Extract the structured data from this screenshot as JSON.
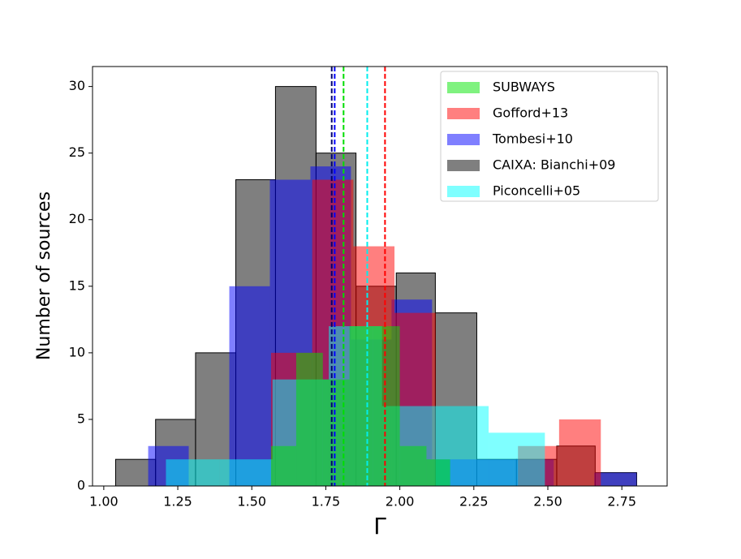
{
  "chart_data": {
    "type": "histogram",
    "xlabel": "Γ",
    "ylabel": "Number of sources",
    "xlim": [
      0.962,
      2.903
    ],
    "ylim": [
      0,
      31.5
    ],
    "xticks": [
      {
        "value": 1,
        "label": "1.00"
      },
      {
        "value": 1.25,
        "label": "1.25"
      },
      {
        "value": 1.5,
        "label": "1.50"
      },
      {
        "value": 1.75,
        "label": "1.75"
      },
      {
        "value": 2,
        "label": "2.00"
      },
      {
        "value": 2.25,
        "label": "2.25"
      },
      {
        "value": 2.5,
        "label": "2.50"
      },
      {
        "value": 2.75,
        "label": "2.75"
      }
    ],
    "yticks": [
      0,
      5,
      10,
      15,
      20,
      25,
      30
    ],
    "legend": "upper right",
    "series": [
      {
        "name": "SUBWAYS",
        "color": "#00e600",
        "line_color": "#00dd00",
        "line": 1.81,
        "bins": [
          1.565,
          1.65,
          1.74,
          1.83,
          1.91,
          2.0,
          2.09,
          2.17
        ],
        "values": [
          3,
          10,
          8,
          12,
          12,
          3,
          2
        ]
      },
      {
        "name": "Gofford+13",
        "color": "#ff0000",
        "line_color": "#ff0000",
        "line": 1.95,
        "bins": [
          1.565,
          1.704,
          1.843,
          1.982,
          2.121,
          2.26,
          2.399,
          2.538,
          2.679
        ],
        "values": [
          10,
          23,
          18,
          13,
          0,
          0,
          3,
          5
        ]
      },
      {
        "name": "Tombesi+10",
        "color": "#0000ff",
        "line_color": "#0000ff",
        "line": 1.78,
        "bins": [
          1.15,
          1.287,
          1.424,
          1.561,
          1.698,
          1.835,
          1.972,
          2.109,
          2.246,
          2.383,
          2.52,
          2.657,
          2.8
        ],
        "values": [
          3,
          0,
          15,
          23,
          24,
          11,
          14,
          2,
          2,
          2,
          0,
          1
        ]
      },
      {
        "name": "CAIXA: Bianchi+09",
        "color": "#000000",
        "line_color": "#00006e",
        "line": 1.77,
        "bins": [
          1.04,
          1.175,
          1.31,
          1.446,
          1.58,
          1.717,
          1.852,
          1.988,
          2.12,
          2.26,
          2.394,
          2.53,
          2.66,
          2.8
        ],
        "values": [
          2,
          5,
          10,
          23,
          30,
          25,
          15,
          16,
          13,
          2,
          2,
          3,
          1
        ]
      },
      {
        "name": "Piconcelli+05",
        "color": "#00ffff",
        "line_color": "#00eeee",
        "line": 1.89,
        "bins": [
          1.21,
          1.39,
          1.57,
          1.76,
          1.94,
          2.12,
          2.3,
          2.49
        ],
        "values": [
          2,
          2,
          8,
          12,
          6,
          6,
          4
        ]
      }
    ]
  }
}
